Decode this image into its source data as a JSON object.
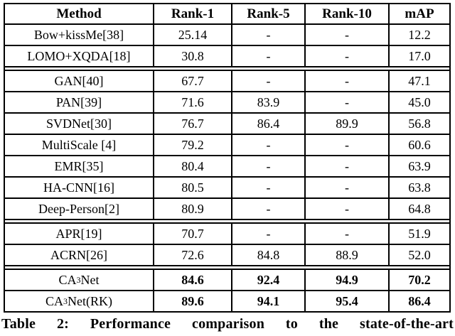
{
  "doc": {
    "caption": "Table 2: Performance comparison to the state-of-the-art"
  },
  "chart_data": {
    "type": "table",
    "title": "Table 2: Performance comparison to the state-of-the-art",
    "columns": [
      "Method",
      "Rank-1",
      "Rank-5",
      "Rank-10",
      "mAP"
    ]
  },
  "table": {
    "columns": [
      "Method",
      "Rank-1",
      "Rank-5",
      "Rank-10",
      "mAP"
    ],
    "groups": [
      {
        "rows": [
          {
            "method": "Bow+kissMe[38]",
            "rank1": "25.14",
            "rank5": "-",
            "rank10": "-",
            "map": "12.2"
          },
          {
            "method": "LOMO+XQDA[18]",
            "rank1": "30.8",
            "rank5": "-",
            "rank10": "-",
            "map": "17.0"
          }
        ]
      },
      {
        "rows": [
          {
            "method": "GAN[40]",
            "rank1": "67.7",
            "rank5": "-",
            "rank10": "-",
            "map": "47.1"
          },
          {
            "method": "PAN[39]",
            "rank1": "71.6",
            "rank5": "83.9",
            "rank10": "-",
            "map": "45.0"
          },
          {
            "method": "SVDNet[30]",
            "rank1": "76.7",
            "rank5": "86.4",
            "rank10": "89.9",
            "map": "56.8"
          },
          {
            "method": "MultiScale [4]",
            "rank1": "79.2",
            "rank5": "-",
            "rank10": "-",
            "map": "60.6"
          },
          {
            "method": "EMR[35]",
            "rank1": "80.4",
            "rank5": "-",
            "rank10": "-",
            "map": "63.9"
          },
          {
            "method": "HA-CNN[16]",
            "rank1": "80.5",
            "rank5": "-",
            "rank10": "-",
            "map": "63.8"
          },
          {
            "method": "Deep-Person[2]",
            "rank1": "80.9",
            "rank5": "-",
            "rank10": "-",
            "map": "64.8"
          }
        ]
      },
      {
        "rows": [
          {
            "method": "APR[19]",
            "rank1": "70.7",
            "rank5": "-",
            "rank10": "-",
            "map": "51.9"
          },
          {
            "method": "ACRN[26]",
            "rank1": "72.6",
            "rank5": "84.8",
            "rank10": "88.9",
            "map": "52.0"
          }
        ]
      },
      {
        "rows": [
          {
            "method_pre": "CA",
            "method_sup": "3",
            "method_post": "Net",
            "rank1": "84.6",
            "rank5": "92.4",
            "rank10": "94.9",
            "map": "70.2"
          },
          {
            "method_pre": "CA",
            "method_sup": "3",
            "method_post": "Net(RK)",
            "rank1": "89.6",
            "rank5": "94.1",
            "rank10": "95.4",
            "map": "86.4"
          }
        ]
      }
    ]
  }
}
